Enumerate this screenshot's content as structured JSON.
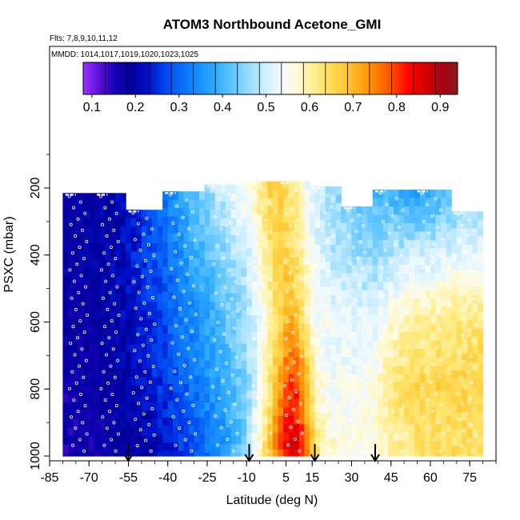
{
  "chart_data": {
    "type": "heatmap",
    "title": "ATOM3 Northbound Acetone_GMI",
    "flights_label": "Flts: 7,8,9,10,11,12",
    "dates_label": "MMDD: 1014,1017,1019,1020,1023,1025",
    "xlabel": "Latitude (deg N)",
    "ylabel": "PSXC (mbar)",
    "xlim": [
      -85,
      85
    ],
    "ylim": [
      1000,
      100
    ],
    "x_ticks": [
      -85,
      -70,
      -55,
      -40,
      -25,
      -10,
      5,
      15,
      30,
      45,
      60,
      75
    ],
    "y_ticks": [
      200,
      400,
      600,
      800,
      1000
    ],
    "colorbar": {
      "min": 0.08,
      "max": 0.94,
      "ticks": [
        0.1,
        0.2,
        0.3,
        0.4,
        0.5,
        0.6,
        0.7,
        0.8,
        0.9
      ],
      "colors": [
        "#9d30ff",
        "#5a10d8",
        "#1200b2",
        "#00009a",
        "#0012cc",
        "#0044ee",
        "#0a6cf8",
        "#148cff",
        "#2ca8ff",
        "#58c2ff",
        "#8ed8ff",
        "#c4ecff",
        "#eef9ff",
        "#fffbe0",
        "#fff09a",
        "#ffe060",
        "#ffca36",
        "#ffaa18",
        "#ff8000",
        "#ff4a00",
        "#ff0000",
        "#d80000",
        "#a80014",
        "#8c1a1a"
      ]
    },
    "profile_markers_lat": [
      -55,
      -9,
      16,
      39
    ],
    "profiles": [
      {
        "lat": -80,
        "lat_end": -68,
        "p_top": 215
      },
      {
        "lat": -68,
        "lat_end": -56,
        "p_top": 215
      },
      {
        "lat": -56,
        "lat_end": -42,
        "p_top": 265
      },
      {
        "lat": -42,
        "lat_end": -26,
        "p_top": 210
      },
      {
        "lat": -26,
        "lat_end": -10,
        "p_top": 190
      },
      {
        "lat": -10,
        "lat_end": 2,
        "p_top": 180
      },
      {
        "lat": 2,
        "lat_end": 14,
        "p_top": 180
      },
      {
        "lat": 14,
        "lat_end": 26,
        "p_top": 195
      },
      {
        "lat": 26,
        "lat_end": 38,
        "p_top": 255
      },
      {
        "lat": 38,
        "lat_end": 54,
        "p_top": 205
      },
      {
        "lat": 54,
        "lat_end": 68,
        "p_top": 205
      },
      {
        "lat": 68,
        "lat_end": 80,
        "p_top": 270
      }
    ],
    "field_nodes_lat": [
      -80,
      -70,
      -60,
      -50,
      -40,
      -32,
      -24,
      -16,
      -10,
      -6,
      -3,
      0,
      3,
      6,
      9,
      12,
      14,
      17,
      20,
      24,
      30,
      38,
      46,
      54,
      62,
      70,
      80
    ],
    "field_nodes_p": [
      200,
      400,
      600,
      800,
      950
    ],
    "field_values": [
      [
        0.19,
        0.19,
        0.2,
        0.24,
        0.33,
        0.4,
        0.46,
        0.52,
        0.56,
        0.6,
        0.64,
        0.66,
        0.66,
        0.64,
        0.6,
        0.56,
        0.52,
        0.5,
        0.48,
        0.46,
        0.43,
        0.4,
        0.39,
        0.36,
        0.38,
        0.42,
        0.45
      ],
      [
        0.18,
        0.19,
        0.21,
        0.25,
        0.31,
        0.37,
        0.42,
        0.46,
        0.49,
        0.55,
        0.6,
        0.64,
        0.66,
        0.66,
        0.63,
        0.59,
        0.55,
        0.52,
        0.5,
        0.48,
        0.47,
        0.46,
        0.48,
        0.5,
        0.5,
        0.52,
        0.53
      ],
      [
        0.17,
        0.18,
        0.2,
        0.23,
        0.28,
        0.33,
        0.38,
        0.43,
        0.47,
        0.52,
        0.56,
        0.61,
        0.66,
        0.71,
        0.69,
        0.63,
        0.57,
        0.54,
        0.53,
        0.53,
        0.52,
        0.52,
        0.57,
        0.6,
        0.61,
        0.62,
        0.63
      ],
      [
        0.16,
        0.17,
        0.19,
        0.22,
        0.26,
        0.3,
        0.35,
        0.4,
        0.45,
        0.52,
        0.58,
        0.66,
        0.73,
        0.8,
        0.8,
        0.74,
        0.66,
        0.58,
        0.55,
        0.54,
        0.54,
        0.56,
        0.63,
        0.66,
        0.66,
        0.66,
        0.66
      ],
      [
        0.16,
        0.16,
        0.18,
        0.2,
        0.23,
        0.27,
        0.32,
        0.38,
        0.45,
        0.55,
        0.64,
        0.72,
        0.79,
        0.86,
        0.84,
        0.78,
        0.7,
        0.62,
        0.58,
        0.56,
        0.55,
        0.56,
        0.6,
        0.63,
        0.64,
        0.64,
        0.64
      ]
    ]
  }
}
